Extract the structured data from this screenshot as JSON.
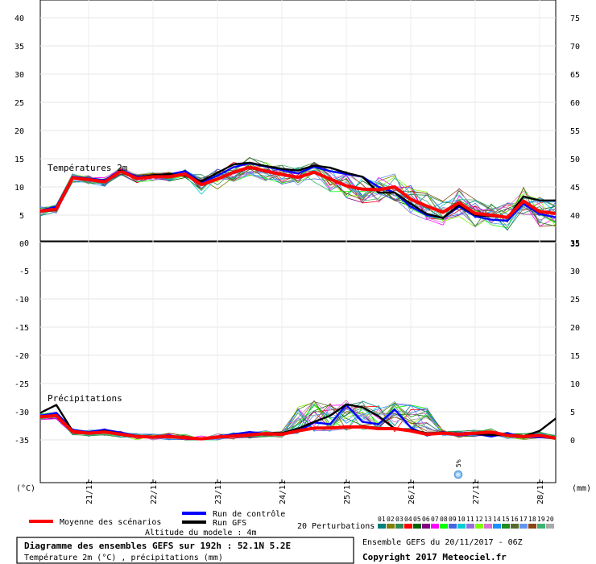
{
  "chart_data": [
    {
      "type": "line",
      "panel": "top",
      "label": "Températures 2m",
      "ylim_left": [
        0,
        40
      ],
      "left_ticks": [
        "0",
        "5",
        "10",
        "15",
        "20",
        "25",
        "30",
        "35",
        "40"
      ],
      "right_ticks": [
        "35",
        "40",
        "45",
        "50",
        "55",
        "60",
        "65",
        "70",
        "75"
      ],
      "x": [
        0,
        6,
        12,
        18,
        24,
        30,
        36,
        42,
        48,
        54,
        60,
        66,
        72,
        78,
        84,
        90,
        96,
        102,
        108,
        114,
        120,
        126,
        132,
        138,
        144,
        150,
        156,
        162,
        168,
        174,
        180,
        186,
        192
      ],
      "series": [
        {
          "name": "Moyenne des scénarios",
          "color": "#ff0000",
          "values": [
            5.7,
            6.1,
            11.6,
            11.3,
            10.9,
            12.8,
            11.5,
            11.8,
            11.8,
            12.3,
            10.4,
            11.4,
            12.6,
            13.5,
            12.8,
            12.2,
            11.7,
            12.6,
            11.4,
            10.2,
            9.6,
            9.5,
            10.0,
            7.8,
            6.6,
            5.5,
            7.2,
            5.3,
            5.0,
            4.6,
            7.5,
            5.6,
            5.3
          ]
        },
        {
          "name": "Run de contrôle",
          "color": "#0000ff",
          "values": [
            5.8,
            6.5,
            11.8,
            11.5,
            11.2,
            13.0,
            11.8,
            12.0,
            12.2,
            12.8,
            10.8,
            12.0,
            13.5,
            14.2,
            13.6,
            13.0,
            12.4,
            13.6,
            12.8,
            12.3,
            11.8,
            10.0,
            9.0,
            6.5,
            5.0,
            4.5,
            6.5,
            4.8,
            4.2,
            4.0,
            7.0,
            5.2,
            4.6
          ]
        },
        {
          "name": "Run GFS",
          "color": "#000000",
          "values": [
            5.6,
            6.0,
            11.5,
            11.4,
            11.0,
            12.7,
            11.6,
            12.1,
            12.3,
            12.0,
            11.0,
            12.5,
            14.0,
            14.3,
            13.7,
            13.2,
            12.9,
            13.8,
            13.4,
            12.5,
            11.8,
            9.0,
            9.0,
            7.0,
            5.2,
            4.5,
            6.8,
            5.0,
            4.8,
            4.6,
            8.3,
            7.6,
            7.6
          ]
        }
      ]
    },
    {
      "type": "line",
      "panel": "bottom",
      "label": "Précipitations",
      "left_ticks": [
        "-35",
        "-30",
        "-25",
        "-20",
        "-15",
        "-10",
        "-5",
        "0"
      ],
      "right_ticks": [
        "0",
        "5",
        "10",
        "15",
        "20",
        "25",
        "30",
        "35"
      ],
      "unit_left": "(°C)",
      "unit_right": "(mm)",
      "x": [
        0,
        6,
        12,
        18,
        24,
        30,
        36,
        42,
        48,
        54,
        60,
        66,
        72,
        78,
        84,
        90,
        96,
        102,
        108,
        114,
        120,
        126,
        132,
        138,
        144,
        150,
        156,
        162,
        168,
        174,
        180,
        186,
        192
      ],
      "series": [
        {
          "name": "Moyenne des scénarios",
          "color": "#ff0000",
          "values": [
            4.1,
            4.3,
            1.5,
            1.2,
            1.4,
            1.0,
            0.6,
            0.5,
            0.6,
            0.4,
            0.2,
            0.5,
            0.7,
            0.9,
            1.1,
            1.0,
            1.6,
            2.1,
            2.1,
            2.3,
            2.3,
            2.0,
            2.0,
            1.6,
            1.0,
            1.2,
            1.0,
            1.2,
            1.4,
            0.8,
            0.6,
            0.8,
            0.3
          ]
        },
        {
          "name": "Run de contrôle",
          "color": "#0000ff",
          "values": [
            4.3,
            4.8,
            1.8,
            1.4,
            1.8,
            1.3,
            0.7,
            0.4,
            0.8,
            0.3,
            0.1,
            0.6,
            1.0,
            1.4,
            1.1,
            0.9,
            1.5,
            3.1,
            2.8,
            6.2,
            3.2,
            2.8,
            5.4,
            2.2,
            0.8,
            1.4,
            0.8,
            1.1,
            0.6,
            1.2,
            0.5,
            0.5,
            0.3
          ]
        },
        {
          "name": "Run GFS",
          "color": "#000000",
          "values": [
            4.8,
            6.2,
            1.6,
            1.1,
            1.6,
            1.1,
            0.6,
            0.5,
            0.6,
            0.3,
            0.2,
            0.5,
            0.7,
            0.8,
            1.2,
            1.2,
            2.0,
            3.2,
            4.3,
            6.3,
            5.8,
            4.2,
            2.0,
            1.8,
            1.2,
            1.3,
            1.1,
            1.0,
            0.9,
            0.8,
            0.6,
            1.6,
            3.8
          ]
        }
      ],
      "annotation": "5%"
    }
  ],
  "x_axis": {
    "tick_labels": [
      "21/11",
      "22/11",
      "23/11",
      "24/11",
      "25/11",
      "26/11",
      "27/11",
      "28/11"
    ]
  },
  "legend": {
    "mean": "Moyenne des scénarios",
    "control": "Run de contrôle",
    "gfs": "Run GFS",
    "perturbations": "20 Perturbations",
    "perturbation_numbers": [
      "01",
      "02",
      "03",
      "04",
      "05",
      "06",
      "07",
      "08",
      "09",
      "10",
      "11",
      "12",
      "13",
      "14",
      "15",
      "16",
      "17",
      "18",
      "19",
      "20"
    ],
    "perturbation_colors": [
      "#008080",
      "#808000",
      "#2e8b57",
      "#ff0000",
      "#006400",
      "#800080",
      "#ff00ff",
      "#00ff00",
      "#4169e1",
      "#00ced1",
      "#9370db",
      "#7fff00",
      "#da70d6",
      "#1e90ff",
      "#228b22",
      "#556b2f",
      "#6495ed",
      "#8b4513",
      "#3cb371",
      "#a9a9a9"
    ],
    "mean_color": "#ff0000",
    "control_color": "#0000ff",
    "gfs_color": "#000000"
  },
  "footer": {
    "altitude": "Altitude du modele : 4m",
    "title": "Diagramme des ensembles GEFS sur 192h : 52.1N 5.2E",
    "subtitle": "Température 2m (°C) , précipitations (mm)",
    "run_info": "Ensemble GEFS du 20/11/2017 - 06Z",
    "copyright": "Copyright 2017 Meteociel.fr"
  }
}
